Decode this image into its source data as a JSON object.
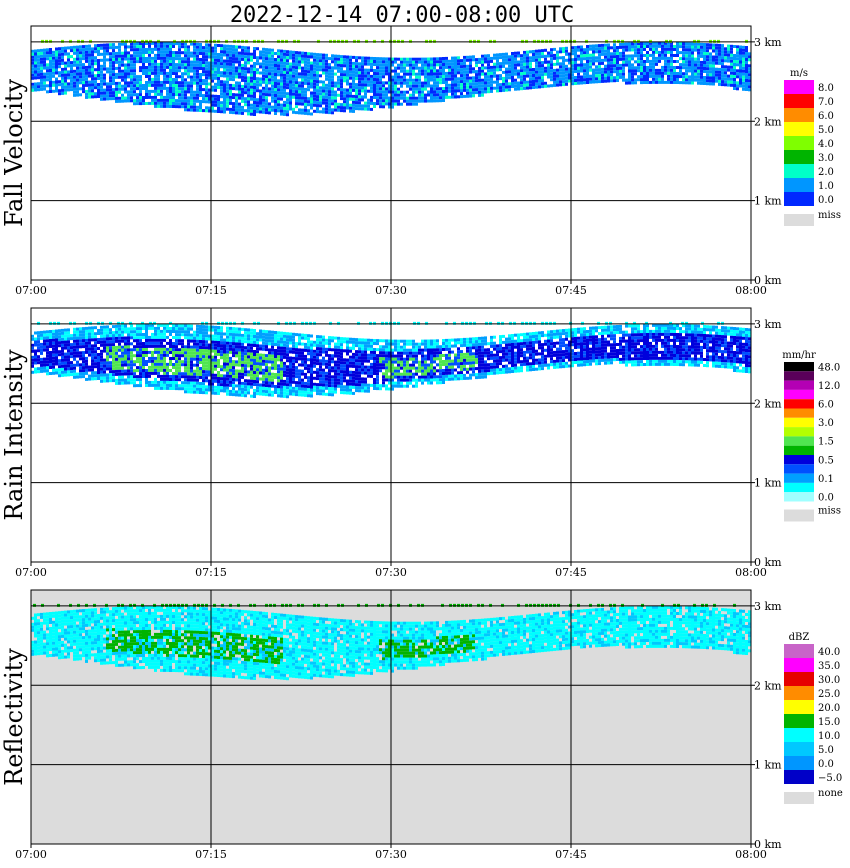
{
  "title": "2022-12-14   07:00-08:00 UTC",
  "time_ticks": [
    "07:00",
    "07:15",
    "07:30",
    "07:45",
    "08:00"
  ],
  "height_ticks": [
    "0 km",
    "1 km",
    "2 km",
    "3 km"
  ],
  "colors": {
    "frame": "#000000",
    "miss": "#dcdcdc"
  },
  "chart_data": [
    {
      "type": "heatmap",
      "title": "Fall Velocity",
      "ylabel": "Fall Velocity",
      "unit": "m/s",
      "x_range": [
        "07:00",
        "08:00"
      ],
      "y_range_km": [
        0,
        3.2
      ],
      "grid": true,
      "legend_placement": "right",
      "legend": [
        {
          "label": "8.0",
          "color": "#ff00ff"
        },
        {
          "label": "7.0",
          "color": "#ff0000"
        },
        {
          "label": "6.0",
          "color": "#ff8c00"
        },
        {
          "label": "5.0",
          "color": "#ffff00"
        },
        {
          "label": "4.0",
          "color": "#7fff00"
        },
        {
          "label": "3.0",
          "color": "#00b400"
        },
        {
          "label": "2.0",
          "color": "#00ffc8"
        },
        {
          "label": "1.0",
          "color": "#0096ff"
        },
        {
          "label": "0.0",
          "color": "#0028ff"
        }
      ],
      "miss_label": "miss",
      "echo_layer": {
        "start": "07:00",
        "end": "08:00",
        "base_km": [
          2.1,
          2.5
        ],
        "top_km": [
          2.8,
          3.0
        ],
        "dominant_color": "#0096ff"
      }
    },
    {
      "type": "heatmap",
      "title": "Rain Intensity",
      "ylabel": "Rain Intensity",
      "unit": "mm/hr",
      "x_range": [
        "07:00",
        "08:00"
      ],
      "y_range_km": [
        0,
        3.2
      ],
      "grid": true,
      "legend_placement": "right",
      "legend": [
        {
          "label": "48.0",
          "color": "#000000"
        },
        {
          "label": "",
          "color": "#5a005a"
        },
        {
          "label": "12.0",
          "color": "#b400b4"
        },
        {
          "label": "",
          "color": "#ff00ff"
        },
        {
          "label": "6.0",
          "color": "#ff0000"
        },
        {
          "label": "",
          "color": "#ff8c00"
        },
        {
          "label": "3.0",
          "color": "#ffff00"
        },
        {
          "label": "",
          "color": "#b4ff00"
        },
        {
          "label": "1.5",
          "color": "#50e650"
        },
        {
          "label": "",
          "color": "#00b400"
        },
        {
          "label": "0.5",
          "color": "#0000dc"
        },
        {
          "label": "",
          "color": "#0050ff"
        },
        {
          "label": "0.1",
          "color": "#00a0ff"
        },
        {
          "label": "",
          "color": "#00ffff"
        },
        {
          "label": "0.0",
          "color": "#a0ffff"
        }
      ],
      "miss_label": "miss",
      "echo_layer": {
        "start": "07:00",
        "end": "08:00",
        "base_km": [
          2.1,
          2.5
        ],
        "top_km": [
          2.8,
          3.0
        ],
        "dominant_color": "#0000dc"
      }
    },
    {
      "type": "heatmap",
      "title": "Reflectivity",
      "ylabel": "Reflectivity",
      "unit": "dBZ",
      "x_range": [
        "07:00",
        "08:00"
      ],
      "y_range_km": [
        0,
        3.2
      ],
      "grid": true,
      "legend_placement": "right",
      "legend": [
        {
          "label": "40.0",
          "color": "#c864c8"
        },
        {
          "label": "35.0",
          "color": "#ff00ff"
        },
        {
          "label": "30.0",
          "color": "#e60000"
        },
        {
          "label": "25.0",
          "color": "#ff8c00"
        },
        {
          "label": "20.0",
          "color": "#ffff00"
        },
        {
          "label": "15.0",
          "color": "#00b400"
        },
        {
          "label": "10.0",
          "color": "#00ffff"
        },
        {
          "label": "5.0",
          "color": "#00c8ff"
        },
        {
          "label": "0.0",
          "color": "#0096ff"
        },
        {
          "label": "−5.0",
          "color": "#0000c8"
        }
      ],
      "miss_label": "none",
      "echo_layer": {
        "start": "07:00",
        "end": "08:00",
        "base_km": [
          2.1,
          2.5
        ],
        "top_km": [
          2.8,
          3.0
        ],
        "dominant_color": "#00ffff"
      }
    }
  ]
}
